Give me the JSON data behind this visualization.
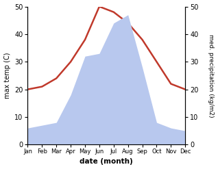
{
  "months": [
    "Jan",
    "Feb",
    "Mar",
    "Apr",
    "May",
    "Jun",
    "Jul",
    "Aug",
    "Sep",
    "Oct",
    "Nov",
    "Dec"
  ],
  "month_indices": [
    1,
    2,
    3,
    4,
    5,
    6,
    7,
    8,
    9,
    10,
    11,
    12
  ],
  "temperature": [
    20,
    21,
    24,
    30,
    38,
    50,
    48,
    44,
    38,
    30,
    22,
    20
  ],
  "precipitation": [
    6,
    7,
    8,
    18,
    32,
    33,
    44,
    47,
    28,
    8,
    6,
    5
  ],
  "temp_color": "#c0392b",
  "precip_color": "#b8c8ee",
  "temp_ylim": [
    0,
    50
  ],
  "precip_ylim": [
    0,
    50
  ],
  "temp_yticks": [
    0,
    10,
    20,
    30,
    40,
    50
  ],
  "precip_yticks": [
    0,
    10,
    20,
    30,
    40,
    50
  ],
  "xlabel": "date (month)",
  "ylabel_left": "max temp (C)",
  "ylabel_right": "med. precipitation (kg/m2)",
  "background_color": "#ffffff",
  "linewidth": 1.8
}
